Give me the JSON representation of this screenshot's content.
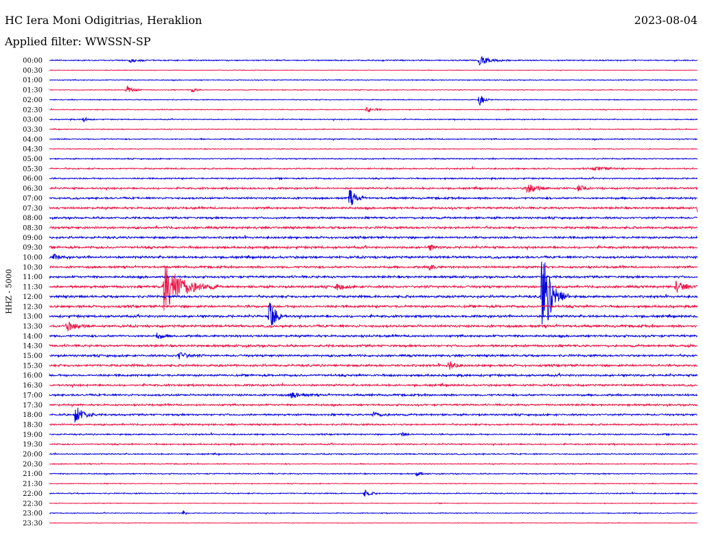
{
  "header": {
    "station": "HC Iera Moni Odigitrias, Heraklion",
    "date": "2023-08-04",
    "filter": "Applied filter: WWSSN-SP"
  },
  "colors": {
    "even_trace": "#0000dd",
    "odd_trace": "#ee1144"
  },
  "chart_data": {
    "type": "line",
    "title": "HC Iera Moni Odigitrias, Heraklion",
    "subtitle": "Applied filter: WWSSN-SP",
    "ylabel": "HHZ - 5000",
    "xlabel": "",
    "x_range_minutes": [
      0,
      30
    ],
    "rows": [
      "00:00",
      "00:30",
      "01:00",
      "01:30",
      "02:00",
      "02:30",
      "03:00",
      "03:30",
      "04:00",
      "04:30",
      "05:00",
      "05:30",
      "06:00",
      "06:30",
      "07:00",
      "07:30",
      "08:00",
      "08:30",
      "09:00",
      "09:30",
      "10:00",
      "10:30",
      "11:00",
      "11:30",
      "12:00",
      "12:30",
      "13:00",
      "13:30",
      "14:00",
      "14:30",
      "15:00",
      "15:30",
      "16:00",
      "16:30",
      "17:00",
      "17:30",
      "18:00",
      "18:30",
      "19:00",
      "19:30",
      "20:00",
      "20:30",
      "21:00",
      "21:30",
      "22:00",
      "22:30",
      "23:00",
      "23:30"
    ],
    "noise_level": [
      0.8,
      0.4,
      0.6,
      0.6,
      0.6,
      0.6,
      0.7,
      0.6,
      0.8,
      0.6,
      0.8,
      1.0,
      1.0,
      1.3,
      1.4,
      1.5,
      1.4,
      1.6,
      1.5,
      1.6,
      1.6,
      1.5,
      1.5,
      1.7,
      1.6,
      1.7,
      1.6,
      1.7,
      1.5,
      1.6,
      1.5,
      1.6,
      1.5,
      1.4,
      1.4,
      1.3,
      1.3,
      1.2,
      1.0,
      1.0,
      0.9,
      0.7,
      0.8,
      0.6,
      0.8,
      0.5,
      0.6,
      0.4
    ],
    "events": [
      {
        "row": 0,
        "minute": 3.7,
        "amplitude": 3,
        "duration_min": 1.2
      },
      {
        "row": 0,
        "minute": 19.9,
        "amplitude": 7,
        "duration_min": 1.5
      },
      {
        "row": 3,
        "minute": 3.6,
        "amplitude": 6,
        "duration_min": 0.8
      },
      {
        "row": 3,
        "minute": 6.6,
        "amplitude": 4,
        "duration_min": 0.6
      },
      {
        "row": 4,
        "minute": 19.9,
        "amplitude": 9,
        "duration_min": 0.6
      },
      {
        "row": 5,
        "minute": 14.7,
        "amplitude": 4,
        "duration_min": 1.0
      },
      {
        "row": 6,
        "minute": 1.6,
        "amplitude": 4,
        "duration_min": 0.5
      },
      {
        "row": 11,
        "minute": 25.2,
        "amplitude": 3,
        "duration_min": 2.0
      },
      {
        "row": 13,
        "minute": 22.1,
        "amplitude": 7,
        "duration_min": 1.5
      },
      {
        "row": 13,
        "minute": 24.5,
        "amplitude": 6,
        "duration_min": 0.6
      },
      {
        "row": 14,
        "minute": 13.9,
        "amplitude": 14,
        "duration_min": 0.8
      },
      {
        "row": 15,
        "minute": 30.0,
        "amplitude": 5,
        "duration_min": 0.4
      },
      {
        "row": 19,
        "minute": 17.6,
        "amplitude": 5,
        "duration_min": 0.6
      },
      {
        "row": 20,
        "minute": 0.2,
        "amplitude": 4,
        "duration_min": 0.8
      },
      {
        "row": 21,
        "minute": 17.6,
        "amplitude": 5,
        "duration_min": 0.6
      },
      {
        "row": 23,
        "minute": 5.3,
        "amplitude": 38,
        "duration_min": 2.5
      },
      {
        "row": 23,
        "minute": 29.0,
        "amplitude": 8,
        "duration_min": 1.2
      },
      {
        "row": 23,
        "minute": 13.3,
        "amplitude": 5,
        "duration_min": 1.0
      },
      {
        "row": 24,
        "minute": 22.8,
        "amplitude": 70,
        "duration_min": 1.3
      },
      {
        "row": 26,
        "minute": 10.2,
        "amplitude": 28,
        "duration_min": 0.8
      },
      {
        "row": 27,
        "minute": 0.8,
        "amplitude": 6,
        "duration_min": 1.5
      },
      {
        "row": 28,
        "minute": 5.0,
        "amplitude": 5,
        "duration_min": 0.8
      },
      {
        "row": 30,
        "minute": 6.0,
        "amplitude": 5,
        "duration_min": 1.2
      },
      {
        "row": 31,
        "minute": 18.5,
        "amplitude": 7,
        "duration_min": 0.8
      },
      {
        "row": 34,
        "minute": 11.2,
        "amplitude": 5,
        "duration_min": 1.2
      },
      {
        "row": 36,
        "minute": 1.2,
        "amplitude": 16,
        "duration_min": 1.0
      },
      {
        "row": 36,
        "minute": 15.0,
        "amplitude": 4,
        "duration_min": 1.2
      },
      {
        "row": 38,
        "minute": 16.3,
        "amplitude": 4,
        "duration_min": 0.6
      },
      {
        "row": 42,
        "minute": 17.0,
        "amplitude": 3,
        "duration_min": 0.6
      },
      {
        "row": 44,
        "minute": 14.6,
        "amplitude": 5,
        "duration_min": 0.8
      },
      {
        "row": 46,
        "minute": 6.2,
        "amplitude": 4,
        "duration_min": 0.3
      }
    ]
  }
}
